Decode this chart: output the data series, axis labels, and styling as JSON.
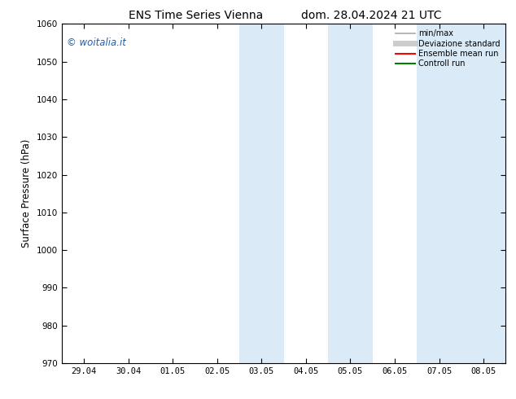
{
  "title_left": "ENS Time Series Vienna",
  "title_right": "dom. 28.04.2024 21 UTC",
  "ylabel": "Surface Pressure (hPa)",
  "ylim": [
    970,
    1060
  ],
  "yticks": [
    970,
    980,
    990,
    1000,
    1010,
    1020,
    1030,
    1040,
    1050,
    1060
  ],
  "xtick_labels": [
    "29.04",
    "30.04",
    "01.05",
    "02.05",
    "03.05",
    "04.05",
    "05.05",
    "06.05",
    "07.05",
    "08.05"
  ],
  "xtick_positions": [
    0,
    1,
    2,
    3,
    4,
    5,
    6,
    7,
    8,
    9
  ],
  "xlim": [
    -0.5,
    9.5
  ],
  "shaded_regions": [
    {
      "x_start": 3.5,
      "x_end": 4.5,
      "color": "#daeaf7"
    },
    {
      "x_start": 5.5,
      "x_end": 6.5,
      "color": "#daeaf7"
    },
    {
      "x_start": 7.5,
      "x_end": 8.5,
      "color": "#daeaf7"
    },
    {
      "x_start": 8.5,
      "x_end": 9.5,
      "color": "#daeaf7"
    }
  ],
  "watermark_text": "© woitalia.it",
  "watermark_color": "#1a5fb4",
  "legend_items": [
    {
      "label": "min/max",
      "color": "#aaaaaa",
      "lw": 1.2,
      "linestyle": "-"
    },
    {
      "label": "Deviazione standard",
      "color": "#cccccc",
      "lw": 5,
      "linestyle": "-"
    },
    {
      "label": "Ensemble mean run",
      "color": "red",
      "lw": 1.5,
      "linestyle": "-"
    },
    {
      "label": "Controll run",
      "color": "green",
      "lw": 1.5,
      "linestyle": "-"
    }
  ],
  "bg_color": "#ffffff",
  "title_fontsize": 10,
  "tick_fontsize": 7.5,
  "ylabel_fontsize": 8.5
}
